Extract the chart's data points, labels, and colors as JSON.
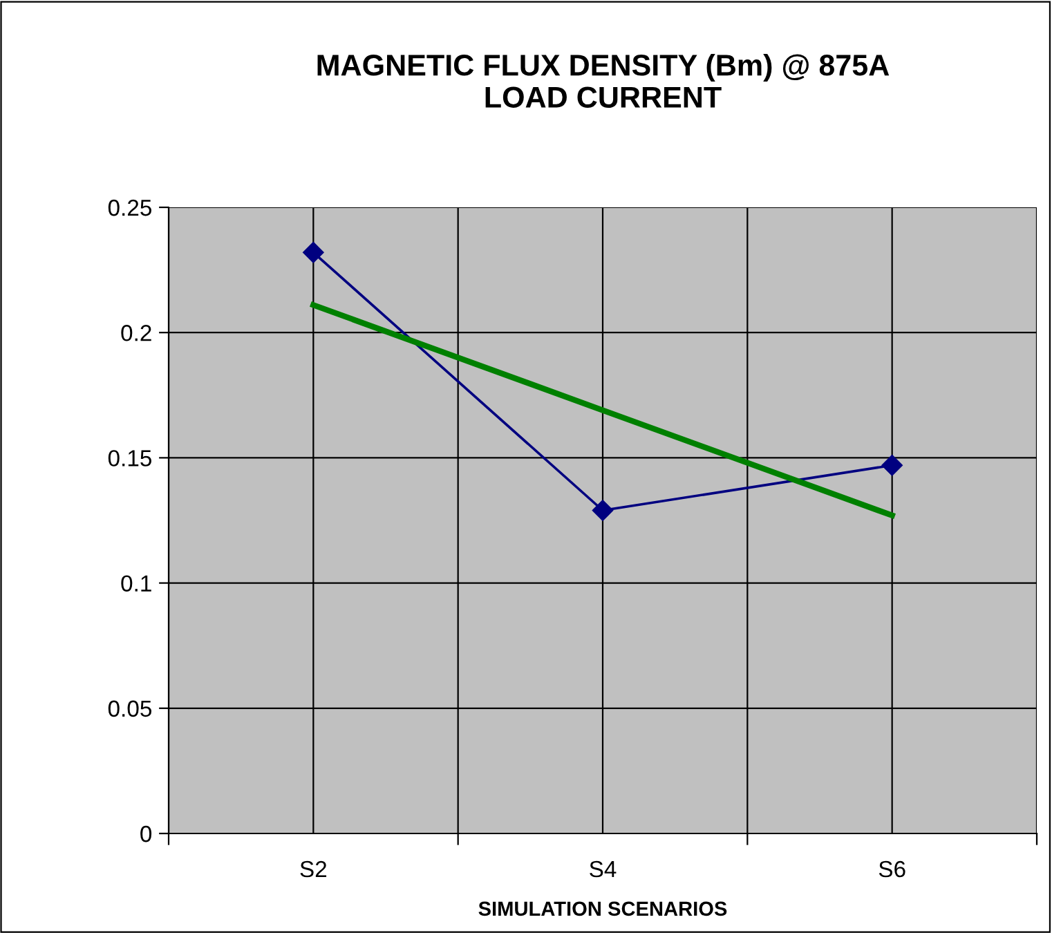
{
  "chart_data": {
    "type": "line",
    "title": "MAGNETIC FLUX DENSITY (Bm) @ 875A\nLOAD CURRENT",
    "xlabel": "SIMULATION SCENARIOS",
    "categories": [
      "S2",
      "S4",
      "S6"
    ],
    "series": [
      {
        "color": "#000080",
        "values": [
          0.232,
          0.129,
          0.147
        ],
        "marker": "diamond"
      },
      {
        "color": "#008000",
        "values": [
          0.211,
          0.169,
          0.127
        ],
        "marker": "none"
      }
    ],
    "ylim": [
      0,
      0.25
    ],
    "yticks": [
      {
        "value": 0,
        "label": "0"
      },
      0.05,
      {
        "value": 0.1,
        "label": "0.1"
      },
      0.15,
      {
        "value": 0.2,
        "label": "0.2"
      },
      0.25
    ],
    "grid": true
  }
}
